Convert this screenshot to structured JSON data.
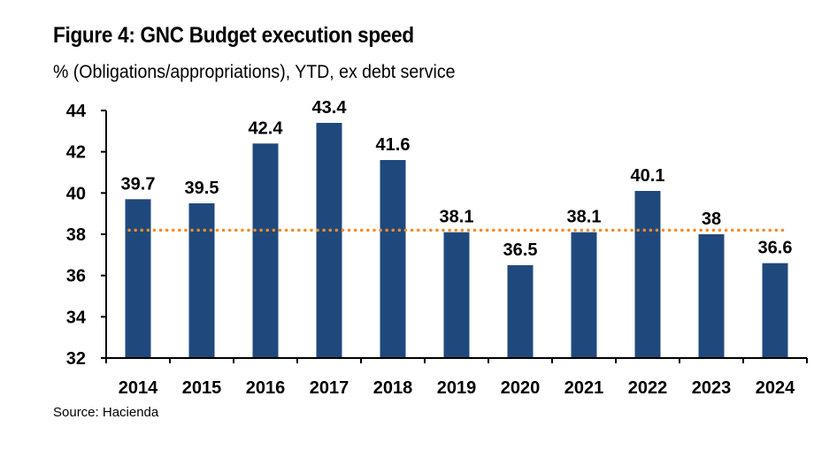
{
  "chart_data": {
    "type": "bar",
    "title": "Figure 4: GNC Budget execution speed",
    "subtitle": "% (Obligations/appropriations), YTD, ex debt service",
    "source": "Source: Hacienda",
    "categories": [
      "2014",
      "2015",
      "2016",
      "2017",
      "2018",
      "2019",
      "2020",
      "2021",
      "2022",
      "2023",
      "2024"
    ],
    "values": [
      39.7,
      39.5,
      42.4,
      43.4,
      41.6,
      38.1,
      36.5,
      38.1,
      40.1,
      38,
      36.6
    ],
    "value_labels": [
      "39.7",
      "39.5",
      "42.4",
      "43.4",
      "41.6",
      "38.1",
      "36.5",
      "38.1",
      "40.1",
      "38",
      "36.6"
    ],
    "reference_line": {
      "value": 38.2,
      "style": "dotted",
      "color": "#F28C28"
    },
    "ylim": [
      32,
      44
    ],
    "yticks": [
      32,
      34,
      36,
      38,
      40,
      42,
      44
    ],
    "xlabel": "",
    "ylabel": "",
    "grid": false,
    "bar_color": "#1F497D"
  }
}
